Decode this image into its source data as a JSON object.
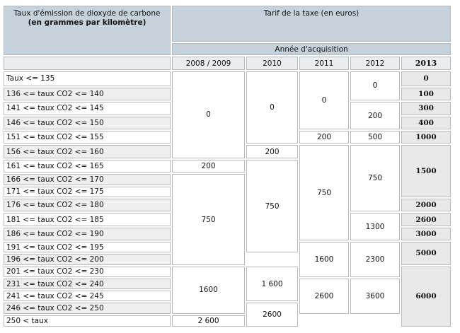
{
  "header": {
    "rate_title": "Taux d'émission de dioxyde de carbone",
    "rate_unit": "(en grammes par kilomètre)",
    "tariff_title": "Tarif de la taxe (en euros)",
    "acquisition_year": "Année d'acquisition",
    "years": [
      "2008 / 2009",
      "2010",
      "2011",
      "2012",
      "2013"
    ]
  },
  "rows": [
    "Taux <= 135",
    "136 <= taux CO2 <= 140",
    "141 <= taux CO2 <= 145",
    "146 <= taux CO2 <= 150",
    "151 <= taux CO2 <= 155",
    "156 <= taux CO2 <= 160",
    "161 <= taux CO2 <= 165",
    "166 <= taux CO2 <= 170",
    "171 <= taux CO2 <= 175",
    "176 <= taux CO2 <= 180",
    "181 <= taux CO2 <= 185",
    "186 <= taux CO2 <= 190",
    "191 <= taux CO2 <= 195",
    "196 <= taux CO2 <= 200",
    "201 <= taux CO2 <= 230",
    "231 <= taux CO2 <= 240",
    "241 <= taux CO2 <= 245",
    "246 <= taux CO2 <= 250",
    "250 < taux"
  ],
  "tariffs": {
    "y2008_2009": [
      "0",
      "200",
      "750",
      "1600",
      "2 600"
    ],
    "y2010": [
      "0",
      "200",
      "750",
      "1 600",
      "2600"
    ],
    "y2011": [
      "0",
      "200",
      "750",
      "1600",
      "2600"
    ],
    "y2012": [
      "0",
      "200",
      "500",
      "750",
      "1300",
      "2300",
      "3600"
    ],
    "y2013": [
      "0",
      "100",
      "300",
      "400",
      "1000",
      "1500",
      "2000",
      "2600",
      "3000",
      "5000",
      "6000"
    ]
  }
}
